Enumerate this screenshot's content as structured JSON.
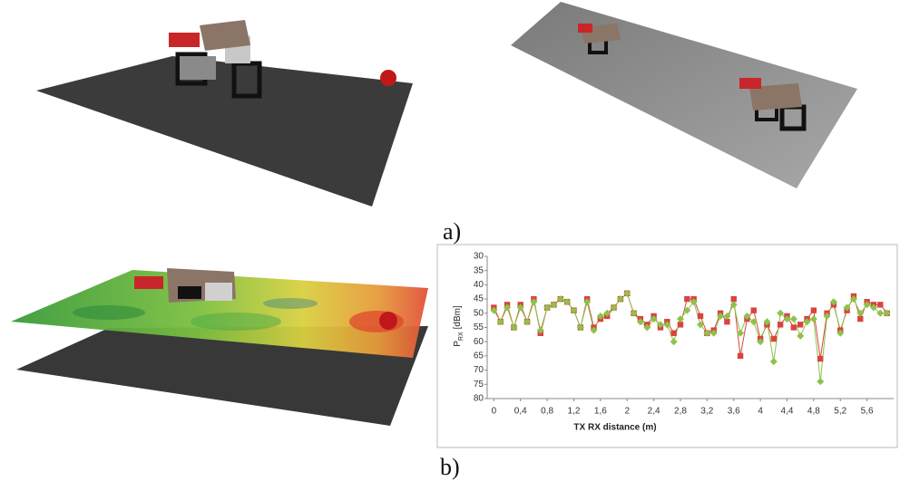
{
  "figure_labels": {
    "a": "a)",
    "b": "b)"
  },
  "chart_data": {
    "type": "line",
    "ylabel": "P",
    "ylabel_sub": "RX",
    "ylabel_unit": "[dBm]",
    "xlabel": "TX RX distance  (m)",
    "x": [
      0,
      0.1,
      0.2,
      0.3,
      0.4,
      0.5,
      0.6,
      0.7,
      0.8,
      0.9,
      1.0,
      1.1,
      1.2,
      1.3,
      1.4,
      1.5,
      1.6,
      1.7,
      1.8,
      1.9,
      2.0,
      2.1,
      2.2,
      2.3,
      2.4,
      2.5,
      2.6,
      2.7,
      2.8,
      2.9,
      3.0,
      3.1,
      3.2,
      3.3,
      3.4,
      3.5,
      3.6,
      3.7,
      3.8,
      3.9,
      4.0,
      4.1,
      4.2,
      4.3,
      4.4,
      4.5,
      4.6,
      4.7,
      4.8,
      4.9,
      5.0,
      5.1,
      5.2,
      5.3,
      5.4,
      5.5,
      5.6,
      5.7,
      5.8,
      5.9
    ],
    "series": [
      {
        "color": "#d9443f",
        "marker": "square",
        "values": [
          48,
          53,
          47,
          55,
          47,
          53,
          45,
          57,
          48,
          47,
          45,
          46,
          49,
          55,
          45,
          55,
          52,
          51,
          48,
          45,
          43,
          50,
          52,
          54,
          51,
          55,
          53,
          57,
          54,
          45,
          45,
          51,
          57,
          56,
          50,
          53,
          45,
          65,
          52,
          49,
          59,
          54,
          59,
          54,
          51,
          55,
          54,
          52,
          49,
          66,
          50,
          47,
          56,
          49,
          44,
          52,
          46,
          47,
          47,
          50
        ]
      },
      {
        "color": "#8cc34a",
        "marker": "diamond",
        "values": [
          49,
          53,
          48,
          55,
          48,
          53,
          46,
          56,
          48,
          47,
          45,
          46,
          49,
          55,
          46,
          56,
          51,
          50,
          48,
          45,
          43,
          50,
          53,
          55,
          52,
          54,
          54,
          60,
          52,
          49,
          46,
          54,
          57,
          57,
          51,
          51,
          47,
          57,
          51,
          53,
          60,
          53,
          67,
          50,
          52,
          52,
          58,
          53,
          52,
          74,
          51,
          46,
          57,
          48,
          45,
          50,
          47,
          48,
          50,
          50
        ]
      }
    ],
    "xlim": [
      -0.1,
      6.0
    ],
    "ylim": [
      80,
      30
    ],
    "xticks": [
      0,
      {
        "value": 0.4,
        "label": "0,4"
      },
      {
        "value": 0.8,
        "label": "0,8"
      },
      {
        "value": 1.2,
        "label": "1,2"
      },
      {
        "value": 1.6,
        "label": "1,6"
      },
      2,
      {
        "value": 2.4,
        "label": "2,4"
      },
      {
        "value": 2.8,
        "label": "2,8"
      },
      {
        "value": 3.2,
        "label": "3,2"
      },
      {
        "value": 3.6,
        "label": "3,6"
      },
      4,
      {
        "value": 4.4,
        "label": "4,4"
      },
      {
        "value": 4.8,
        "label": "4,8"
      },
      {
        "value": 5.2,
        "label": "5,2"
      },
      {
        "value": 5.6,
        "label": "5,6"
      }
    ],
    "yticks": [
      30,
      35,
      40,
      45,
      50,
      55,
      60,
      65,
      70,
      75,
      80
    ],
    "grid": false
  }
}
